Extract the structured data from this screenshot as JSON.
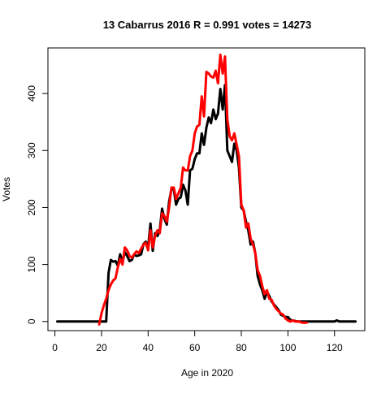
{
  "chart_data": {
    "type": "line",
    "title": "13 Cabarrus 2016 R = 0.991 votes = 14273",
    "xlabel": "Age in 2020",
    "ylabel": "Votes",
    "xlim": [
      -3,
      133
    ],
    "ylim": [
      -16,
      480
    ],
    "xticks": [
      0,
      20,
      40,
      60,
      80,
      100,
      120
    ],
    "yticks": [
      0,
      100,
      200,
      300,
      400
    ],
    "grid": false,
    "series": [
      {
        "color": "#000000",
        "x": [
          1,
          2,
          3,
          4,
          5,
          6,
          7,
          8,
          9,
          10,
          11,
          12,
          13,
          14,
          15,
          16,
          17,
          18,
          19,
          20,
          21,
          22,
          23,
          24,
          25,
          26,
          27,
          28,
          29,
          30,
          31,
          32,
          33,
          34,
          35,
          36,
          37,
          38,
          39,
          40,
          41,
          42,
          43,
          44,
          45,
          46,
          47,
          48,
          49,
          50,
          51,
          52,
          53,
          54,
          55,
          56,
          57,
          58,
          59,
          60,
          61,
          62,
          63,
          64,
          65,
          66,
          67,
          68,
          69,
          70,
          71,
          72,
          73,
          74,
          75,
          76,
          77,
          78,
          79,
          80,
          81,
          82,
          83,
          84,
          85,
          86,
          87,
          88,
          89,
          90,
          91,
          92,
          93,
          94,
          95,
          96,
          97,
          98,
          99,
          100,
          101,
          102,
          103,
          104,
          105,
          106,
          107,
          108,
          109,
          110,
          111,
          112,
          113,
          114,
          115,
          116,
          117,
          118,
          119,
          120,
          121,
          122,
          123,
          124,
          125,
          126,
          127,
          128,
          129
        ],
        "y": [
          0,
          0,
          0,
          0,
          0,
          0,
          0,
          0,
          0,
          0,
          0,
          0,
          0,
          0,
          0,
          0,
          0,
          0,
          0,
          0,
          0,
          0,
          85,
          108,
          105,
          106,
          98,
          118,
          104,
          122,
          115,
          106,
          108,
          118,
          115,
          116,
          118,
          136,
          140,
          130,
          172,
          124,
          155,
          150,
          160,
          198,
          180,
          170,
          210,
          232,
          232,
          205,
          215,
          218,
          240,
          230,
          205,
          265,
          268,
          285,
          295,
          295,
          330,
          310,
          340,
          358,
          348,
          372,
          355,
          365,
          408,
          372,
          415,
          300,
          290,
          280,
          312,
          300,
          270,
          200,
          195,
          175,
          160,
          135,
          140,
          120,
          80,
          65,
          55,
          40,
          52,
          45,
          35,
          30,
          25,
          20,
          12,
          10,
          8,
          8,
          3,
          2,
          1,
          0,
          0,
          0,
          0,
          0,
          0,
          0,
          0,
          0,
          0,
          0,
          0,
          0,
          0,
          0,
          0,
          0,
          2,
          0,
          0,
          0,
          0,
          0,
          0,
          0,
          0
        ]
      },
      {
        "color": "#ff0000",
        "x": [
          19,
          20,
          21,
          22,
          23,
          24,
          25,
          26,
          27,
          28,
          29,
          30,
          31,
          32,
          33,
          34,
          35,
          36,
          37,
          38,
          39,
          40,
          41,
          42,
          43,
          44,
          45,
          46,
          47,
          48,
          49,
          50,
          51,
          52,
          53,
          54,
          55,
          56,
          57,
          58,
          59,
          60,
          61,
          62,
          63,
          64,
          65,
          66,
          67,
          68,
          69,
          70,
          71,
          72,
          73,
          74,
          75,
          76,
          77,
          78,
          79,
          80,
          81,
          82,
          83,
          84,
          85,
          86,
          87,
          88,
          89,
          90,
          91,
          92,
          93,
          94,
          95,
          96,
          97,
          98,
          99,
          100,
          101,
          102,
          103,
          104,
          105,
          106,
          107,
          108
        ],
        "y": [
          -5,
          15,
          28,
          40,
          55,
          65,
          72,
          76,
          95,
          110,
          100,
          130,
          125,
          115,
          112,
          118,
          123,
          120,
          128,
          135,
          138,
          125,
          160,
          130,
          150,
          160,
          155,
          190,
          185,
          175,
          200,
          235,
          235,
          215,
          225,
          235,
          270,
          265,
          265,
          290,
          300,
          330,
          342,
          345,
          395,
          360,
          438,
          435,
          430,
          428,
          440,
          418,
          468,
          435,
          465,
          355,
          325,
          318,
          330,
          310,
          290,
          205,
          195,
          165,
          172,
          145,
          135,
          120,
          90,
          80,
          62,
          48,
          55,
          40,
          38,
          28,
          22,
          18,
          14,
          12,
          5,
          2,
          0,
          2,
          0,
          0,
          0,
          -2,
          -2,
          -2
        ]
      }
    ]
  }
}
